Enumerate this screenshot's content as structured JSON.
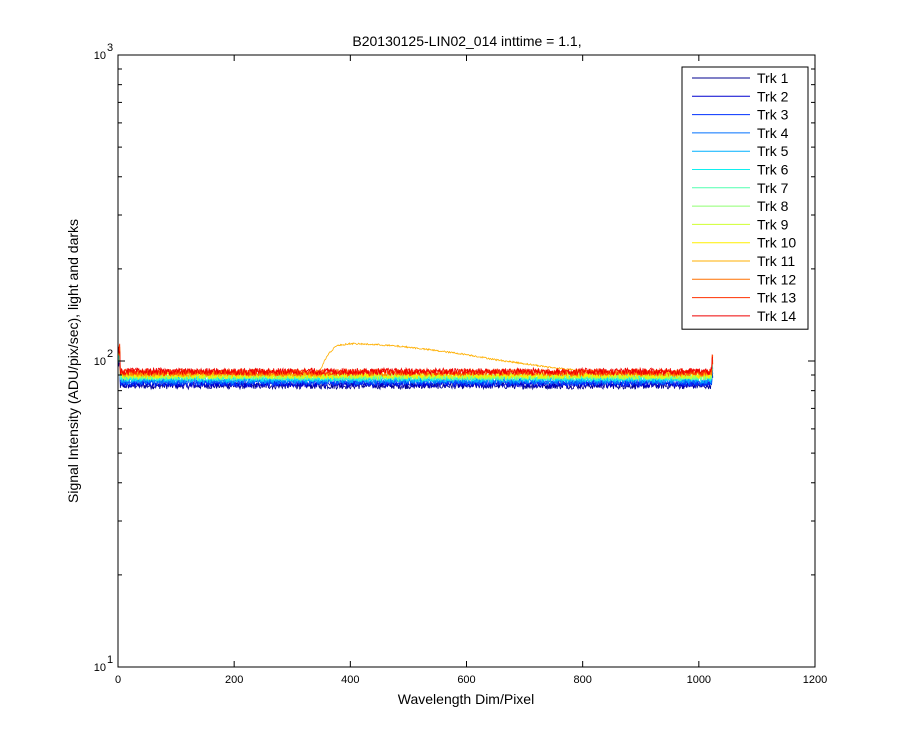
{
  "chart_data": {
    "type": "line",
    "title": "B20130125-LIN02_014 inttime = 1.1,",
    "xlabel": "Wavelength Dim/Pixel",
    "ylabel": "Signal Intensity (ADU/pix/sec), light and darks",
    "xlim": [
      0,
      1200
    ],
    "ylim": [
      10,
      1000
    ],
    "y_scale": "log",
    "x_ticks": [
      "0",
      "200",
      "400",
      "600",
      "800",
      "1000",
      "1200"
    ],
    "y_ticks": [
      {
        "base": "10",
        "exp": "1",
        "value": 10
      },
      {
        "base": "10",
        "exp": "2",
        "value": 100
      },
      {
        "base": "10",
        "exp": "3",
        "value": 1000
      }
    ],
    "grid": false,
    "legend_position": "top-right",
    "x_range_data": [
      1,
      1024
    ],
    "series": [
      {
        "name": "Trk 1",
        "color": "#00008f",
        "level": 83
      },
      {
        "name": "Trk 2",
        "color": "#0000cf",
        "level": 84
      },
      {
        "name": "Trk 3",
        "color": "#0030ff",
        "level": 85
      },
      {
        "name": "Trk 4",
        "color": "#0070ff",
        "level": 86
      },
      {
        "name": "Trk 5",
        "color": "#00b0ff",
        "level": 87
      },
      {
        "name": "Trk 6",
        "color": "#10efef",
        "level": 88
      },
      {
        "name": "Trk 7",
        "color": "#50ffaf",
        "level": 88.5
      },
      {
        "name": "Trk 8",
        "color": "#8fff70",
        "level": 89
      },
      {
        "name": "Trk 9",
        "color": "#cfff30",
        "level": 89.5
      },
      {
        "name": "Trk 10",
        "color": "#ffef00",
        "level": 90
      },
      {
        "name": "Trk 11",
        "color": "#ffaf00",
        "level": 91,
        "bump": {
          "x": [
            345,
            350,
            360,
            375,
            400,
            450,
            500,
            550,
            600,
            650,
            700,
            750,
            800,
            850,
            880
          ],
          "y": [
            91,
            95,
            104,
            112,
            114,
            113,
            111,
            108,
            105,
            101,
            98,
            95,
            93,
            91.5,
            91
          ]
        }
      },
      {
        "name": "Trk 12",
        "color": "#ff7000",
        "level": 91.5
      },
      {
        "name": "Trk 13",
        "color": "#ff3000",
        "level": 92
      },
      {
        "name": "Trk 14",
        "color": "#ef0000",
        "level": 92.5
      }
    ]
  }
}
